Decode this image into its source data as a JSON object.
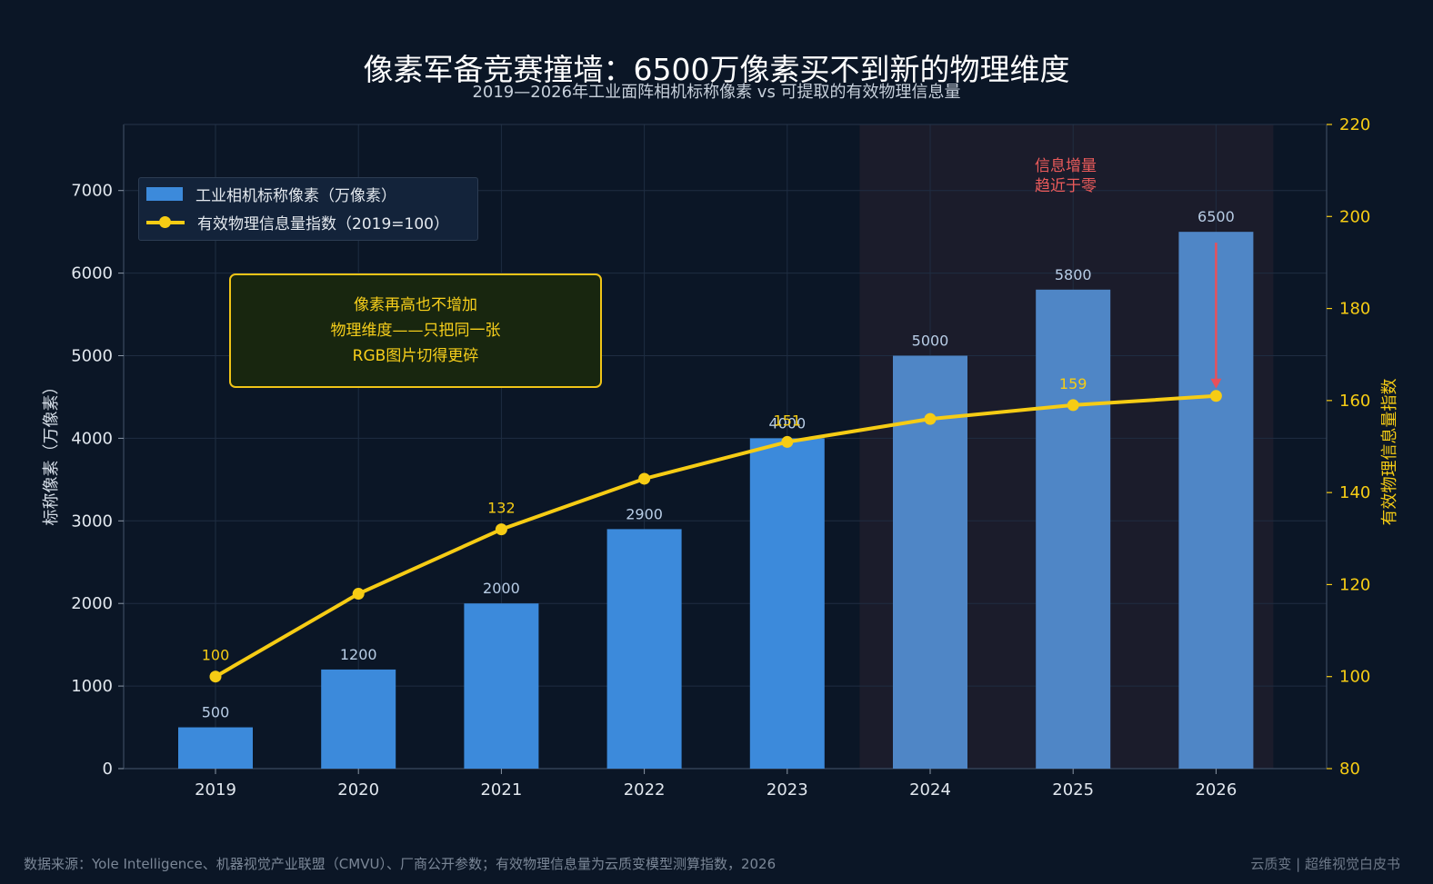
{
  "header": {
    "title": "像素军备竞赛撞墙：6500万像素买不到新的物理维度",
    "subtitle": "2019—2026年工业面阵相机标称像素 vs 可提取的有效物理信息量"
  },
  "legend": {
    "bar_label": "工业相机标称像素（万像素）",
    "line_label": "有效物理信息量指数（2019=100）"
  },
  "callout": {
    "lines": [
      "像素再高也不增加",
      "物理维度——只把同一张",
      "RGB图片切得更碎"
    ]
  },
  "note": {
    "lines": [
      "信息增量",
      "趋近于零"
    ]
  },
  "footer": {
    "source": "数据来源：Yole Intelligence、机器视觉产业联盟（CMVU）、厂商公开参数；有效物理信息量为云质变模型测算指数，2026",
    "brand": "云质变 | 超维视觉白皮书"
  },
  "colors": {
    "bar": "#3c8adb",
    "bar_highlight": "#4f86c6",
    "line": "#f6cc14",
    "highlight_region": "#1b1c2b",
    "arrow": "#e8505b"
  },
  "chart_data": {
    "type": "bar",
    "categories": [
      "2019",
      "2020",
      "2021",
      "2022",
      "2023",
      "2024",
      "2025",
      "2026"
    ],
    "series": [
      {
        "name": "工业相机标称像素（万像素）",
        "type": "bar",
        "axis": "left",
        "values": [
          500,
          1200,
          2000,
          2900,
          4000,
          5000,
          5800,
          6500
        ],
        "labels": [
          "500",
          "1200",
          "2000",
          "2900",
          "4000",
          "5000",
          "5800",
          "6500"
        ]
      },
      {
        "name": "有效物理信息量指数（2019=100）",
        "type": "line",
        "axis": "right",
        "values": [
          100,
          118,
          132,
          143,
          151,
          156,
          159,
          161
        ],
        "labels": [
          "100",
          "",
          "132",
          "",
          "151",
          "",
          "159",
          ""
        ]
      }
    ],
    "ylabel": "标称像素（万像素）",
    "y2label": "有效物理信息量指数",
    "ylim": [
      0,
      7800
    ],
    "yticks": [
      0,
      1000,
      2000,
      3000,
      4000,
      5000,
      6000,
      7000
    ],
    "y2lim": [
      80,
      220
    ],
    "y2ticks": [
      80,
      100,
      120,
      140,
      160,
      180,
      200,
      220
    ],
    "highlight_range": [
      "2024",
      "2026"
    ],
    "grid": true,
    "legend_position": "top-left"
  }
}
